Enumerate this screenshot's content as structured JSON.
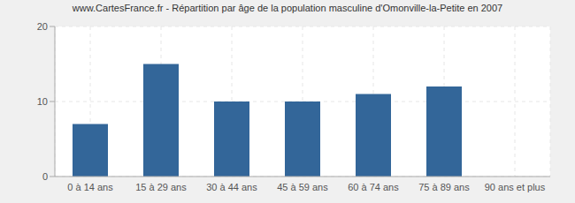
{
  "chart_data": {
    "type": "bar",
    "title": "www.CartesFrance.fr - Répartition par âge de la population masculine d'Omonville-la-Petite en 2007",
    "categories": [
      "0 à 14 ans",
      "15 à 29 ans",
      "30 à 44 ans",
      "45 à 59 ans",
      "60 à 74 ans",
      "75 à 89 ans",
      "90 ans et plus"
    ],
    "values": [
      7,
      15,
      10,
      10,
      11,
      12,
      0
    ],
    "color": "#336699",
    "ylim": [
      0,
      20
    ],
    "yticks": [
      0,
      10,
      20
    ],
    "grid": true
  }
}
